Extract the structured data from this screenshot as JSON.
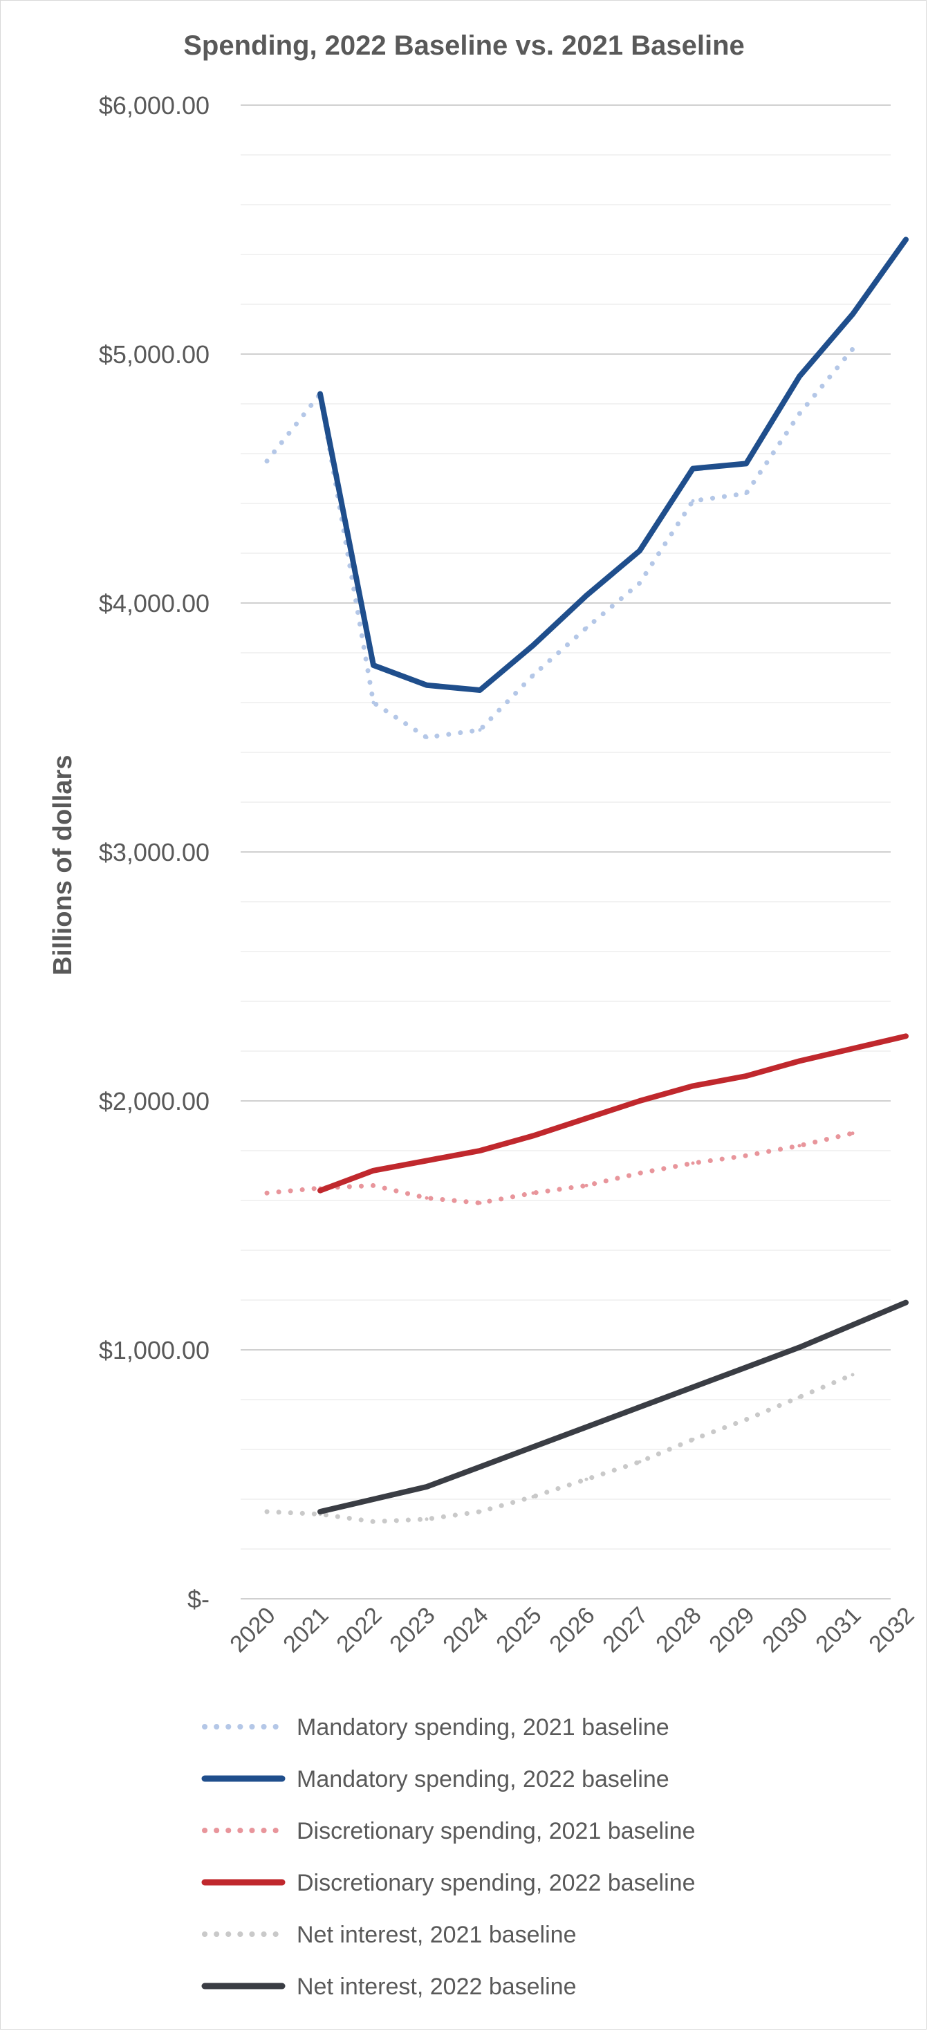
{
  "chart_data": {
    "type": "line",
    "title": "Spending, 2022 Baseline vs. 2021 Baseline",
    "ylabel": "Billions of dollars",
    "xlabel": "",
    "x": [
      "2020",
      "2021",
      "2022",
      "2023",
      "2024",
      "2025",
      "2026",
      "2027",
      "2028",
      "2029",
      "2030",
      "2031",
      "2032"
    ],
    "ylim": [
      0,
      6000
    ],
    "y_ticks": [
      0,
      1000,
      2000,
      3000,
      4000,
      5000,
      6000
    ],
    "y_tick_labels": [
      "$-",
      "$1,000.00",
      "$2,000.00",
      "$3,000.00",
      "$4,000.00",
      "$5,000.00",
      "$6,000.00"
    ],
    "minor_gridlines_every": 200,
    "grid": true,
    "legend_position": "bottom",
    "series": [
      {
        "name": "Mandatory spending, 2021 baseline",
        "color": "#b4c7e7",
        "style": "dotted",
        "values": [
          4570,
          4840,
          3600,
          3460,
          3490,
          3710,
          3900,
          4080,
          4410,
          4440,
          4760,
          5020,
          null
        ]
      },
      {
        "name": "Mandatory spending, 2022 baseline",
        "color": "#1f4e8c",
        "style": "solid",
        "values": [
          null,
          4840,
          3750,
          3670,
          3650,
          3830,
          4030,
          4210,
          4540,
          4560,
          4910,
          5160,
          5460
        ]
      },
      {
        "name": "Discretionary spending, 2021 baseline",
        "color": "#e8959b",
        "style": "dotted",
        "values": [
          1630,
          1650,
          1660,
          1610,
          1590,
          1630,
          1660,
          1710,
          1750,
          1780,
          1820,
          1870,
          null
        ]
      },
      {
        "name": "Discretionary spending, 2022 baseline",
        "color": "#c0282d",
        "style": "solid",
        "values": [
          null,
          1640,
          1720,
          1760,
          1800,
          1860,
          1930,
          2000,
          2060,
          2100,
          2160,
          2210,
          2260
        ]
      },
      {
        "name": "Net interest, 2021 baseline",
        "color": "#c9c9c9",
        "style": "dotted",
        "values": [
          350,
          340,
          310,
          320,
          350,
          410,
          480,
          550,
          640,
          720,
          810,
          900,
          null
        ]
      },
      {
        "name": "Net interest, 2022 baseline",
        "color": "#3a3d44",
        "style": "solid",
        "values": [
          null,
          350,
          400,
          450,
          530,
          610,
          690,
          770,
          850,
          930,
          1010,
          1100,
          1190
        ]
      }
    ]
  }
}
